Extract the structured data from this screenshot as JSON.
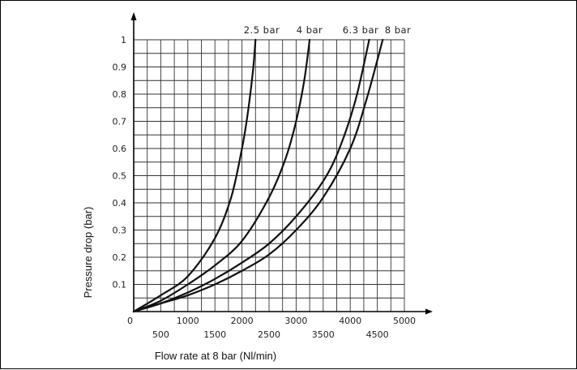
{
  "chart_data": {
    "type": "line",
    "title": "",
    "xlabel": "Flow rate at 8 bar (Nl/min)",
    "ylabel": "Pressure drop (bar)",
    "xlim": [
      0,
      5000
    ],
    "ylim": [
      0,
      1
    ],
    "grid": true,
    "x_ticks_upper": [
      "0",
      "1000",
      "2000",
      "3000",
      "4000",
      "5000"
    ],
    "x_ticks_lower": [
      "500",
      "1500",
      "2500",
      "3500",
      "4500"
    ],
    "y_ticks": [
      "0.1",
      "0.2",
      "0.3",
      "0.4",
      "0.5",
      "0.6",
      "0.7",
      "0.8",
      "0.9",
      "1"
    ],
    "series": [
      {
        "name": "2.5 bar",
        "x": [
          0,
          500,
          1000,
          1500,
          1800,
          2000,
          2100,
          2200,
          2250
        ],
        "y": [
          0,
          0.06,
          0.13,
          0.27,
          0.42,
          0.6,
          0.72,
          0.88,
          1.0
        ]
      },
      {
        "name": "4 bar",
        "x": [
          0,
          500,
          1000,
          1500,
          2000,
          2500,
          2800,
          3000,
          3150,
          3250
        ],
        "y": [
          0,
          0.04,
          0.1,
          0.17,
          0.26,
          0.42,
          0.56,
          0.7,
          0.85,
          1.0
        ]
      },
      {
        "name": "6.3 bar",
        "x": [
          0,
          500,
          1000,
          1500,
          2000,
          2500,
          3000,
          3500,
          3800,
          4100,
          4350
        ],
        "y": [
          0,
          0.03,
          0.07,
          0.12,
          0.18,
          0.25,
          0.35,
          0.48,
          0.6,
          0.78,
          1.0
        ]
      },
      {
        "name": "8 bar",
        "x": [
          0,
          500,
          1000,
          1500,
          2000,
          2500,
          3000,
          3500,
          4000,
          4300,
          4600
        ],
        "y": [
          0,
          0.03,
          0.06,
          0.1,
          0.15,
          0.21,
          0.3,
          0.42,
          0.6,
          0.78,
          1.0
        ]
      }
    ]
  }
}
